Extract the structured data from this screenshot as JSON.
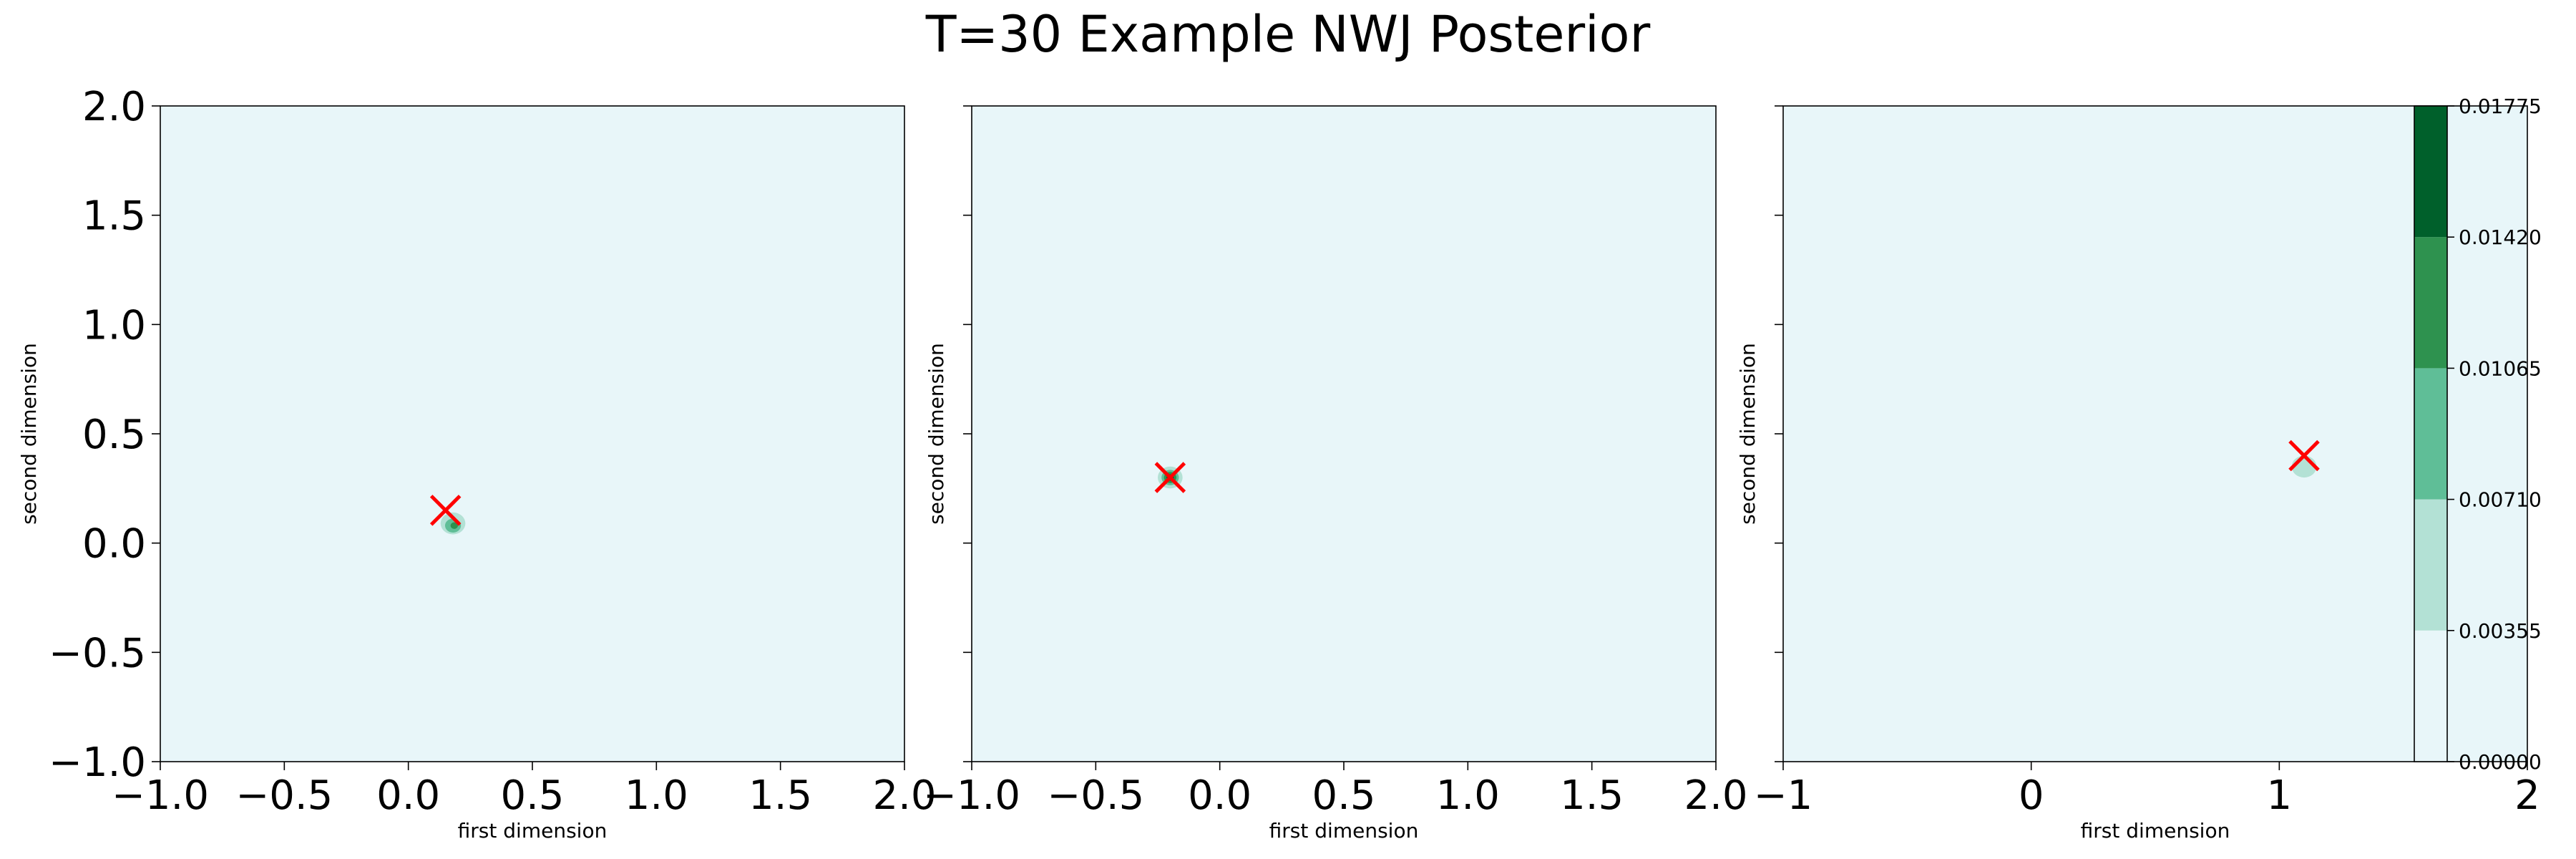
{
  "chart_data": {
    "type": "heatmap",
    "title": "T=30 Example NWJ Posterior",
    "panels": [
      {
        "xlabel": "first dimension",
        "ylabel": "second dimension",
        "xlim": [
          -1.0,
          2.0
        ],
        "ylim": [
          -1.0,
          2.0
        ],
        "xticks": [
          "−1.0",
          "−0.5",
          "0.0",
          "0.5",
          "1.0",
          "1.5",
          "2.0"
        ],
        "xtick_values": [
          -1.0,
          -0.5,
          0.0,
          0.5,
          1.0,
          1.5,
          2.0
        ],
        "yticks": [
          "−1.0",
          "−0.5",
          "0.0",
          "0.5",
          "1.0",
          "1.5",
          "2.0"
        ],
        "ytick_values": [
          -1.0,
          -0.5,
          0.0,
          0.5,
          1.0,
          1.5,
          2.0
        ],
        "show_ytick_labels": true,
        "marker": {
          "x": 0.15,
          "y": 0.15
        },
        "blobs": [
          {
            "x": 0.18,
            "y": 0.09,
            "rx": 0.05,
            "ry": 0.05,
            "level": 1
          },
          {
            "x": 0.18,
            "y": 0.08,
            "rx": 0.032,
            "ry": 0.032,
            "level": 2
          },
          {
            "x": 0.185,
            "y": 0.08,
            "rx": 0.015,
            "ry": 0.015,
            "level": 3
          }
        ]
      },
      {
        "xlabel": "first dimension",
        "ylabel": "second dimension",
        "xlim": [
          -1.0,
          2.0
        ],
        "ylim": [
          -1.0,
          2.0
        ],
        "xticks": [
          "−1.0",
          "−0.5",
          "0.0",
          "0.5",
          "1.0",
          "1.5",
          "2.0"
        ],
        "xtick_values": [
          -1.0,
          -0.5,
          0.0,
          0.5,
          1.0,
          1.5,
          2.0
        ],
        "yticks": [],
        "ytick_values": [
          -1.0,
          -0.5,
          0.0,
          0.5,
          1.0,
          1.5,
          2.0
        ],
        "show_ytick_labels": false,
        "marker": {
          "x": -0.2,
          "y": 0.3
        },
        "blobs": [
          {
            "x": -0.2,
            "y": 0.3,
            "rx": 0.05,
            "ry": 0.05,
            "level": 1
          },
          {
            "x": -0.2,
            "y": 0.3,
            "rx": 0.035,
            "ry": 0.035,
            "level": 2
          },
          {
            "x": -0.2,
            "y": 0.3,
            "rx": 0.025,
            "ry": 0.025,
            "level": 3
          },
          {
            "x": -0.2,
            "y": 0.3,
            "rx": 0.015,
            "ry": 0.015,
            "level": 4
          }
        ]
      },
      {
        "xlabel": "first dimension",
        "ylabel": "second dimension",
        "xlim": [
          -1.0,
          2.0
        ],
        "ylim": [
          -1.0,
          2.0
        ],
        "xticks": [
          "−1",
          "0",
          "1",
          "2"
        ],
        "xtick_values": [
          -1,
          0,
          1,
          2
        ],
        "yticks": [],
        "ytick_values": [
          -1.0,
          -0.5,
          0.0,
          0.5,
          1.0,
          1.5,
          2.0
        ],
        "show_ytick_labels": false,
        "marker": {
          "x": 1.1,
          "y": 0.4
        },
        "blobs": [
          {
            "x": 1.1,
            "y": 0.35,
            "rx": 0.05,
            "ry": 0.05,
            "level": 1
          }
        ]
      }
    ],
    "colorbar": {
      "levels": [
        0.0,
        0.00355,
        0.0071,
        0.01065,
        0.0142,
        0.01775
      ],
      "tick_labels": [
        "0.00000",
        "0.00355",
        "0.00710",
        "0.01065",
        "0.01420",
        "0.01775"
      ],
      "colors": [
        "#e8f6f9",
        "#b3e1d5",
        "#5fbe97",
        "#2e924f",
        "#00602b"
      ]
    },
    "marker_color": "#ff0000",
    "background_color": "#e8f6f9",
    "grid": false,
    "legend": "none"
  }
}
